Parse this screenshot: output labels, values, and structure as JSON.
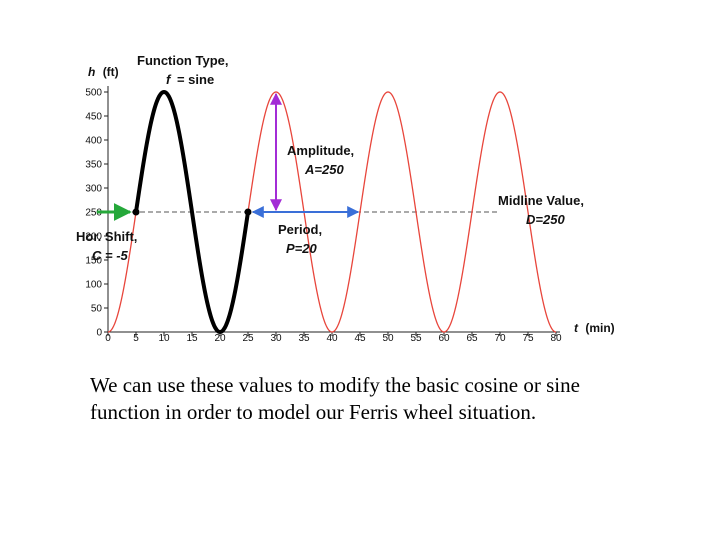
{
  "chart_data": {
    "type": "line",
    "xlabel_var": "t",
    "xlabel_unit": "(min)",
    "ylabel_var": "h",
    "ylabel_unit": "(ft)",
    "x_ticks": [
      "0",
      "5",
      "10",
      "15",
      "20",
      "25",
      "30",
      "35",
      "40",
      "45",
      "50",
      "55",
      "60",
      "65",
      "70",
      "75",
      "80"
    ],
    "y_ticks": [
      "0",
      "50",
      "100",
      "150",
      "200",
      "250",
      "300",
      "350",
      "400",
      "450",
      "500"
    ],
    "xlim": [
      0,
      80
    ],
    "ylim": [
      0,
      500
    ],
    "function": {
      "amplitude": 250,
      "period": 20,
      "horizontal_shift": -5,
      "midline": 250
    },
    "series": [
      {
        "style": "thin-red",
        "color": "#e8463c",
        "x": [
          0,
          80
        ]
      },
      {
        "style": "thick-black",
        "color": "#000000",
        "x": [
          5,
          25
        ]
      }
    ],
    "midline_value": 250,
    "markers": [
      {
        "color": "#000000",
        "x": 5,
        "y": 250
      },
      {
        "color": "#000000",
        "x": 25,
        "y": 250
      }
    ],
    "arrows": {
      "amplitude": {
        "color": "#a32cd6",
        "x": 30,
        "y_from": 250,
        "y_to": 500
      },
      "period": {
        "color": "#3a6fd8",
        "y": 250,
        "x_from": 25,
        "x_to": 45
      },
      "shift": {
        "color": "#25a83a",
        "y": 250,
        "x_from": -2,
        "x_to": 5
      }
    },
    "annotations": {
      "function_type_title": "Function Type,",
      "function_type_var": "f",
      "function_type_rest": "= sine",
      "amplitude_title": "Amplitude,",
      "amplitude_eq": "A=250",
      "period_title": "Period,",
      "period_eq": "P=20",
      "midline_title": "Midline Value,",
      "midline_eq": "D=250",
      "shift_title": "Hor. Shift,",
      "shift_eq": "C = -5"
    }
  },
  "caption": "We can use these values to modify the basic cosine or sine function in order to model our Ferris wheel situation."
}
